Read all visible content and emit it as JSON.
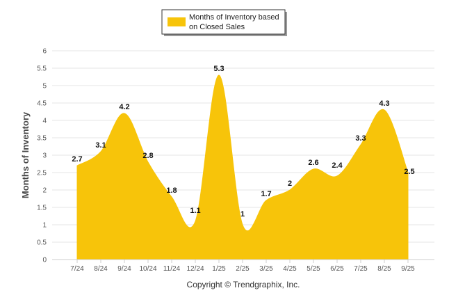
{
  "chart_data": {
    "type": "area",
    "title": "",
    "xlabel": "",
    "ylabel": "Months of Inventory",
    "categories": [
      "7/24",
      "8/24",
      "9/24",
      "10/24",
      "11/24",
      "12/24",
      "1/25",
      "2/25",
      "3/25",
      "4/25",
      "5/25",
      "6/25",
      "7/25",
      "8/25",
      "9/25"
    ],
    "series": [
      {
        "name": "Months of Inventory based on Closed Sales",
        "values": [
          2.7,
          3.1,
          4.2,
          2.8,
          1.8,
          1.1,
          5.3,
          1,
          1.7,
          2,
          2.6,
          2.4,
          3.3,
          4.3,
          2.5
        ],
        "color": "#F7C40A"
      }
    ],
    "ylim": [
      0,
      6
    ],
    "yticks": [
      "0",
      "0.5",
      "1",
      "1.5",
      "2",
      "2.5",
      "3",
      "3.5",
      "4",
      "4.5",
      "5",
      "5.5",
      "6"
    ],
    "grid": true,
    "legend_position": "top-center"
  },
  "legend": {
    "line1": "Months of Inventory based",
    "line2": "on Closed Sales"
  },
  "footer": {
    "copyright": "Copyright © Trendgraphix, Inc."
  }
}
